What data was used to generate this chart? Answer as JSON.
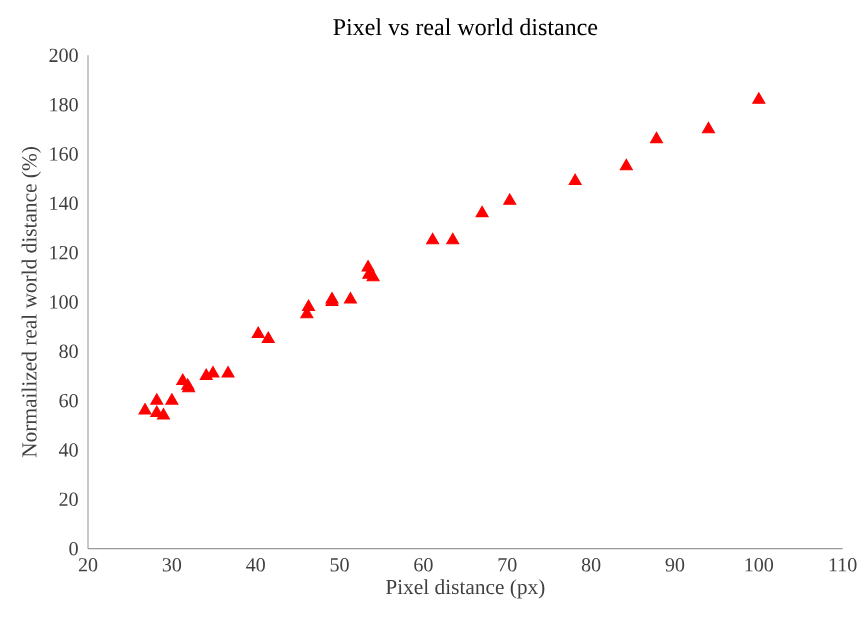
{
  "chart_data": {
    "type": "scatter",
    "title": "Pixel vs real world distance",
    "xlabel": "Pixel distance (px)",
    "ylabel": "Normailized real world distance  (%)",
    "series": [
      {
        "color": "#ff0000",
        "x": [
          26.8,
          28.2,
          28.2,
          29,
          30,
          31.3,
          31.9,
          32,
          34.1,
          34.9,
          36.7,
          40.3,
          41.5,
          46.1,
          46.3,
          49.1,
          49.1,
          51.3,
          53.4,
          53.5,
          54,
          61.1,
          63.5,
          67,
          70.3,
          78.1,
          84.2,
          87.8,
          94,
          100
        ],
        "values": [
          56,
          60,
          55,
          54,
          60,
          68,
          66,
          65,
          70,
          71,
          71,
          87,
          85,
          95,
          98,
          101,
          100,
          101,
          114,
          111,
          110,
          125,
          125,
          136,
          141,
          149,
          155,
          166,
          170,
          182
        ]
      }
    ],
    "marker": "triangle",
    "grid": false,
    "xlim": [
      20,
      110
    ],
    "xticks": [
      20,
      30,
      40,
      50,
      60,
      70,
      80,
      90,
      100,
      110
    ],
    "ylim": [
      0,
      200
    ],
    "yticks": [
      0,
      20,
      40,
      60,
      80,
      100,
      120,
      140,
      160,
      180,
      200
    ]
  }
}
